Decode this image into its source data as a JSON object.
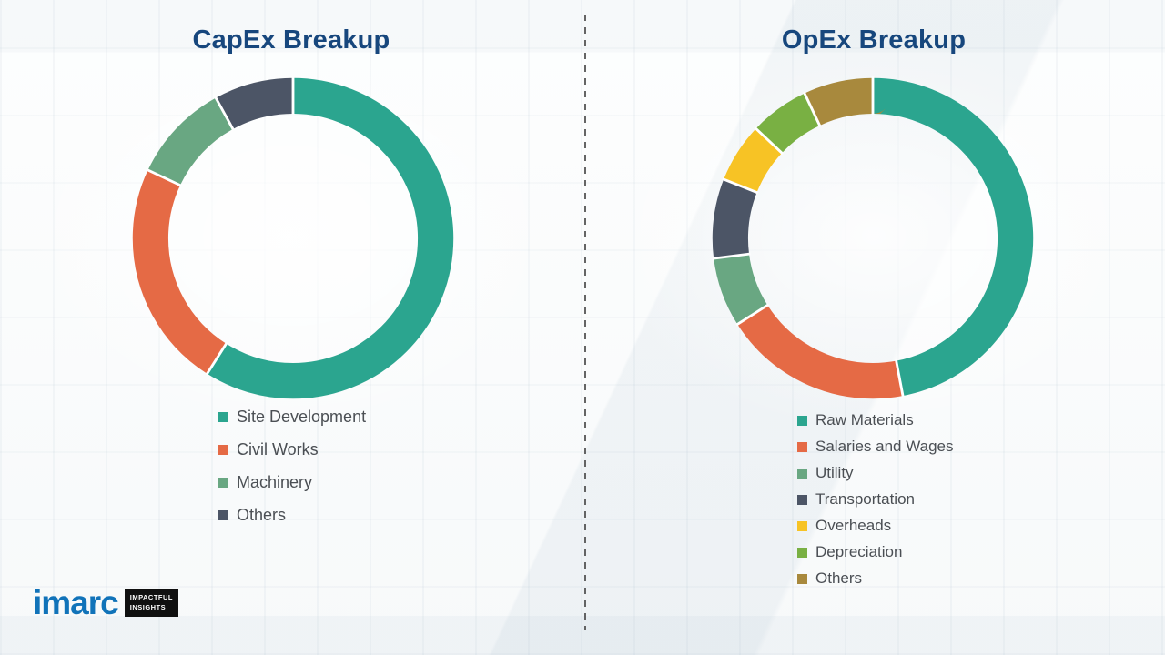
{
  "theme": {
    "title-color": "#17477d",
    "legend-text-color": "#4b4f54",
    "brand-blue": "#1173b9",
    "divider-color": "#4a4a4a"
  },
  "chart_data": [
    {
      "type": "pie",
      "subtype": "donut",
      "title": "CapEx Breakup",
      "labels": [
        "Site Development",
        "Civil Works",
        "Machinery",
        "Others"
      ],
      "values": [
        59,
        23,
        10,
        8
      ],
      "colors": [
        "#2ba58f",
        "#e56a45",
        "#69a782",
        "#4c5566"
      ],
      "legend_position": "below-chart-left",
      "start_angle_deg": 0,
      "direction": "clockwise"
    },
    {
      "type": "pie",
      "subtype": "donut",
      "title": "OpEx Breakup",
      "labels": [
        "Raw Materials",
        "Salaries and Wages",
        "Utility",
        "Transportation",
        "Overheads",
        "Depreciation",
        "Others"
      ],
      "values": [
        47,
        19,
        7,
        8,
        6,
        6,
        7
      ],
      "colors": [
        "#2ba58f",
        "#e56a45",
        "#69a782",
        "#4c5566",
        "#f7c325",
        "#79b043",
        "#a8893d"
      ],
      "legend_position": "below-chart-left",
      "start_angle_deg": 0,
      "direction": "clockwise"
    }
  ],
  "logo": {
    "brand": "imarc",
    "tagline": [
      "IMPACTFUL",
      "INSIGHTS"
    ]
  }
}
